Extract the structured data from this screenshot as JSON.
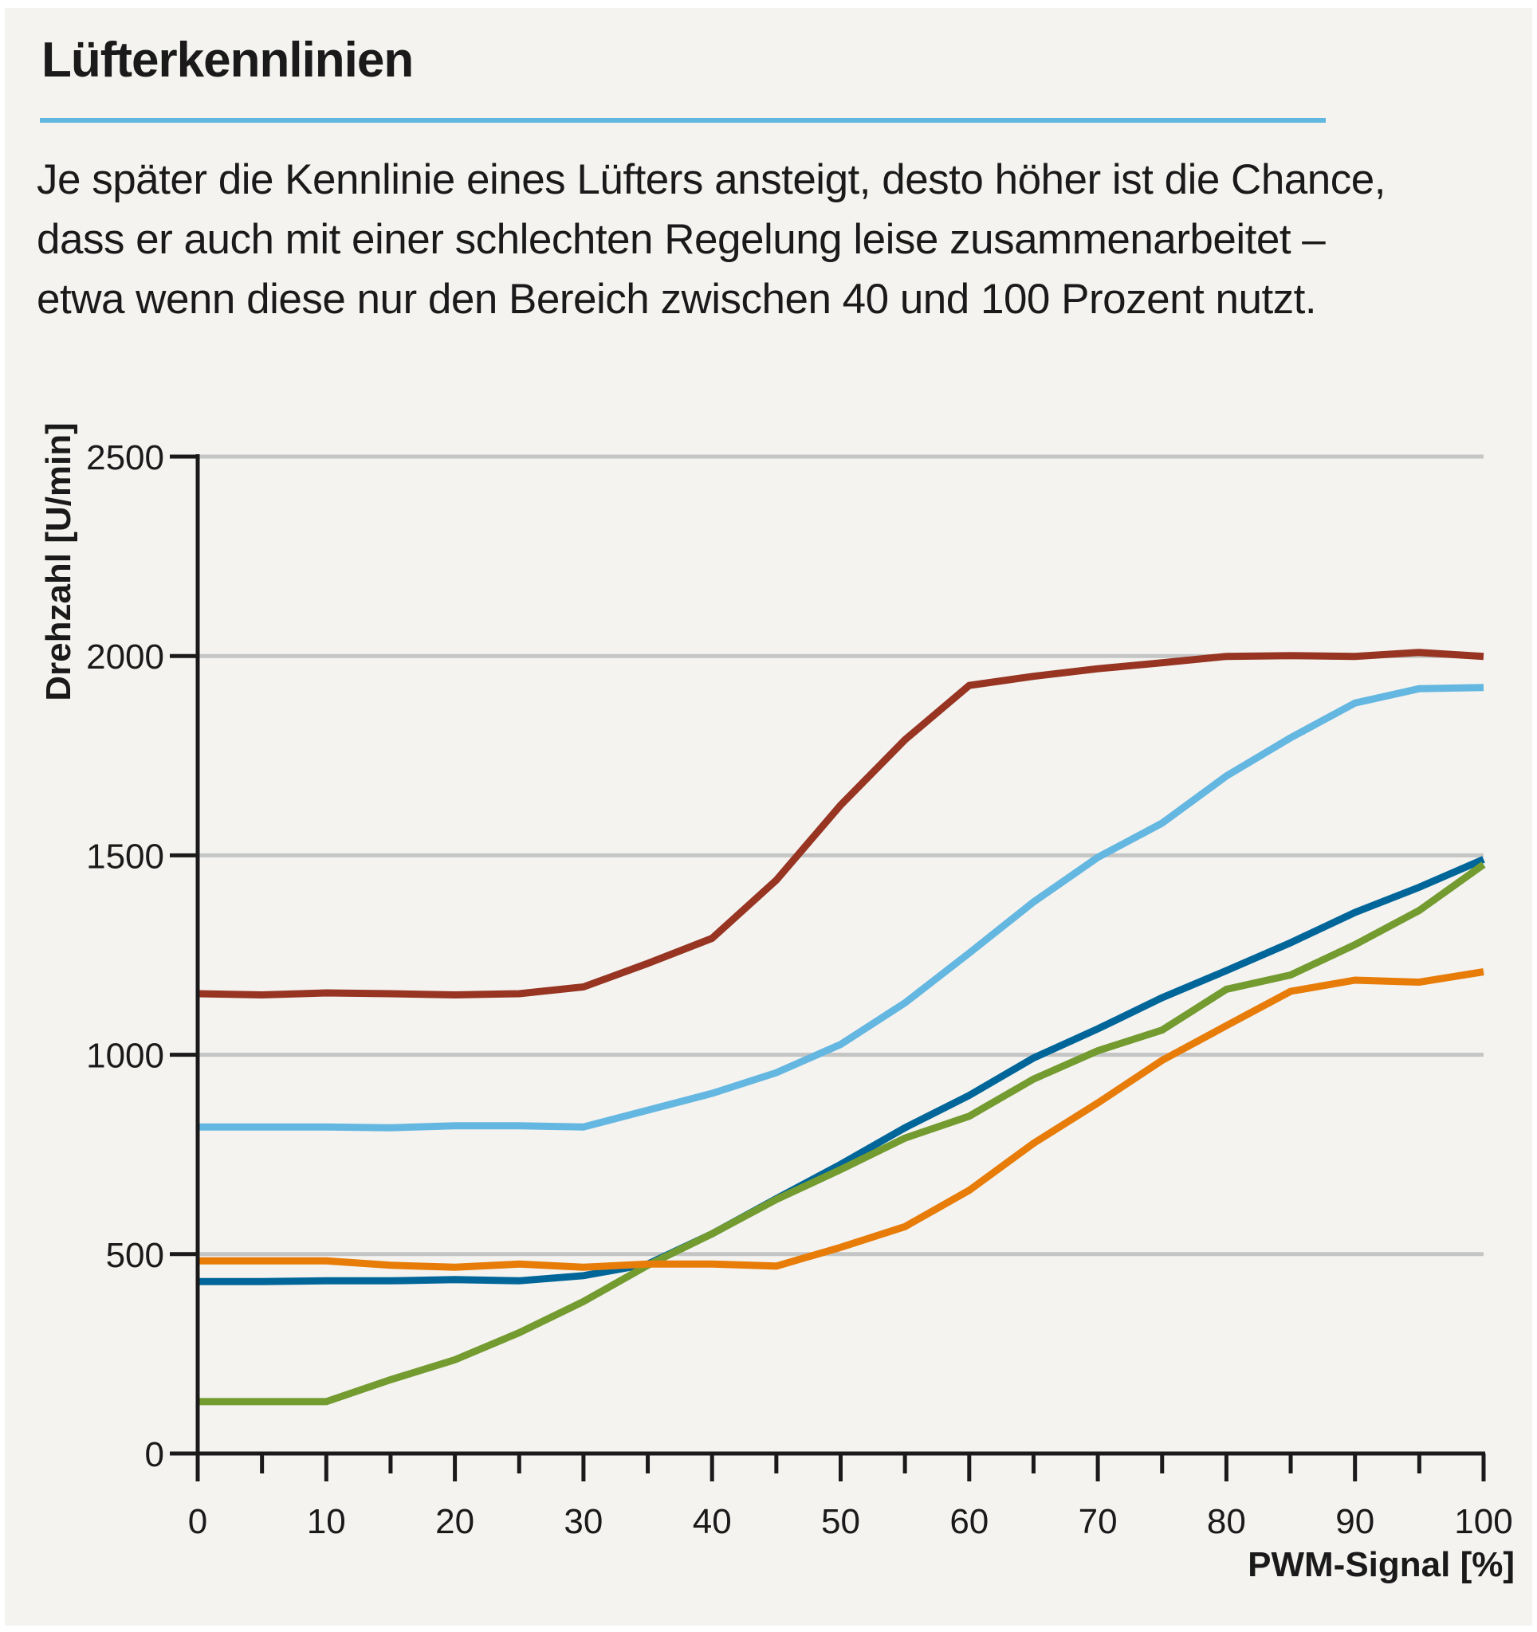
{
  "header": {
    "title": "Lüfterkennlinien",
    "description": "Je später die Kennlinie eines Lüfters ansteigt, desto höher ist die Chance, dass er auch mit einer schlechten Regelung leise zusammenarbeitet – etwa wenn diese nur den Bereich zwischen 40 und 100 Prozent nutzt."
  },
  "colors": {
    "accent_rule": "#62b7e0",
    "background": "#f4f3f0",
    "grid": "#c4c5c5",
    "axis": "#1a1a1a"
  },
  "chart_data": {
    "type": "line",
    "title": "Lüfterkennlinien",
    "xlabel": "PWM-Signal [%]",
    "ylabel": "Drehzahl [U/min]",
    "xlim": [
      0,
      100
    ],
    "ylim": [
      0,
      2500
    ],
    "grid": "horizontal",
    "legend": "none",
    "x_ticks": [
      0,
      10,
      20,
      30,
      40,
      50,
      60,
      70,
      80,
      90,
      100
    ],
    "x_minor_ticks": [
      5,
      15,
      25,
      35,
      45,
      55,
      65,
      75,
      85,
      95
    ],
    "y_ticks": [
      0,
      500,
      1000,
      1500,
      2000,
      2500
    ],
    "x": [
      0,
      5,
      10,
      15,
      20,
      25,
      30,
      35,
      40,
      45,
      50,
      55,
      60,
      65,
      70,
      75,
      80,
      85,
      90,
      95,
      100
    ],
    "series": [
      {
        "name": "red",
        "color": "#973422",
        "values": [
          1153,
          1150,
          1155,
          1153,
          1150,
          1153,
          1170,
          1229,
          1292,
          1438,
          1626,
          1790,
          1926,
          1949,
          1968,
          1983,
          1999,
          2001,
          1999,
          2009,
          1999
        ]
      },
      {
        "name": "light-blue",
        "color": "#64b7e0",
        "values": [
          819,
          819,
          819,
          817,
          822,
          822,
          819,
          861,
          903,
          955,
          1026,
          1130,
          1255,
          1383,
          1495,
          1581,
          1699,
          1795,
          1882,
          1918,
          1921
        ]
      },
      {
        "name": "dark-blue",
        "color": "#006699",
        "values": [
          431,
          431,
          433,
          433,
          436,
          433,
          446,
          475,
          551,
          639,
          725,
          817,
          898,
          992,
          1065,
          1143,
          1211,
          1281,
          1357,
          1420,
          1490
        ]
      },
      {
        "name": "green",
        "color": "#739b2f",
        "values": [
          130,
          130,
          130,
          185,
          235,
          303,
          381,
          472,
          551,
          637,
          712,
          791,
          846,
          939,
          1010,
          1062,
          1164,
          1200,
          1276,
          1362,
          1477
        ]
      },
      {
        "name": "orange",
        "color": "#e87c08",
        "values": [
          483,
          483,
          483,
          472,
          467,
          475,
          467,
          475,
          475,
          470,
          517,
          569,
          660,
          778,
          879,
          986,
          1073,
          1159,
          1187,
          1182,
          1208
        ]
      }
    ]
  }
}
